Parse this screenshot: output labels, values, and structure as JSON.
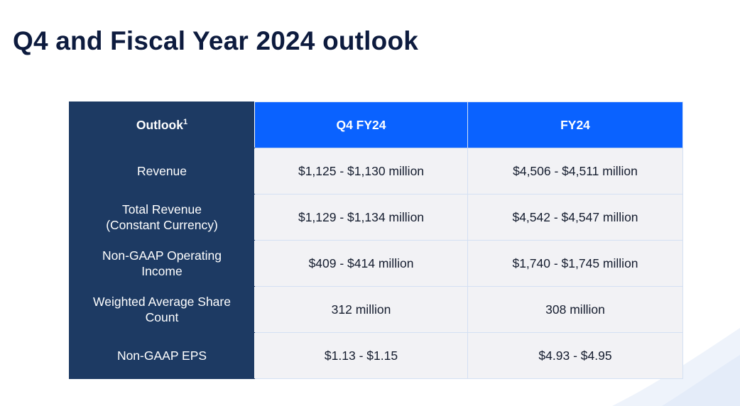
{
  "page": {
    "title": "Q4 and Fiscal Year 2024 outlook"
  },
  "table": {
    "header": {
      "label": "Outlook",
      "footnote_marker": "1",
      "q4": "Q4 FY24",
      "fy": "FY24"
    },
    "rows": [
      {
        "label_lines": [
          "Revenue"
        ],
        "q4": "$1,125 - $1,130 million",
        "fy": "$4,506 - $4,511 million"
      },
      {
        "label_lines": [
          "Total Revenue",
          "(Constant Currency)"
        ],
        "q4": "$1,129 - $1,134 million",
        "fy": "$4,542 - $4,547 million"
      },
      {
        "label_lines": [
          "Non-GAAP Operating",
          "Income"
        ],
        "q4": "$409 - $414 million",
        "fy": "$1,740 - $1,745 million"
      },
      {
        "label_lines": [
          "Weighted Average Share",
          "Count"
        ],
        "q4": "312 million",
        "fy": "308 million"
      },
      {
        "label_lines": [
          "Non-GAAP EPS"
        ],
        "q4": "$1.13 - $1.15",
        "fy": "$4.93 - $4.95"
      }
    ]
  },
  "colors": {
    "title": "#0d1b3e",
    "label_column": "#1d3a63",
    "period_header": "#0a62ff",
    "value_cell": "#f2f2f5"
  }
}
